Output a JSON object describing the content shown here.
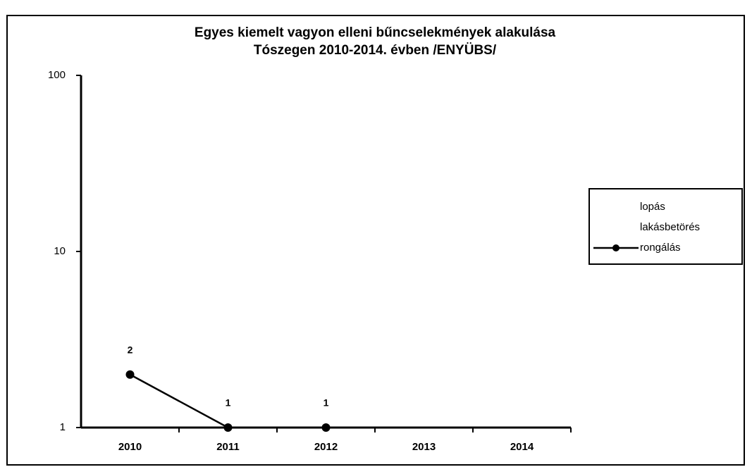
{
  "chart_data": {
    "type": "line",
    "title": [
      "Egyes kiemelt vagyon elleni bűncselekmények alakulása",
      "Tószegen 2010-2014. évben /ENYÜBS/"
    ],
    "categories": [
      "2010",
      "2011",
      "2012",
      "2013",
      "2014"
    ],
    "series": [
      {
        "name": "lopás",
        "color": "#000000",
        "values": [
          null,
          null,
          null,
          null,
          null
        ]
      },
      {
        "name": "lakásbetörés",
        "color": "#000000",
        "values": [
          null,
          null,
          null,
          null,
          null
        ]
      },
      {
        "name": "rongálás",
        "color": "#000000",
        "values": [
          2,
          1,
          1,
          null,
          null
        ]
      }
    ],
    "ylim": [
      1,
      100
    ],
    "yticks": [
      1,
      10,
      100
    ],
    "log_scale": true,
    "grid": false,
    "legend": "right"
  }
}
